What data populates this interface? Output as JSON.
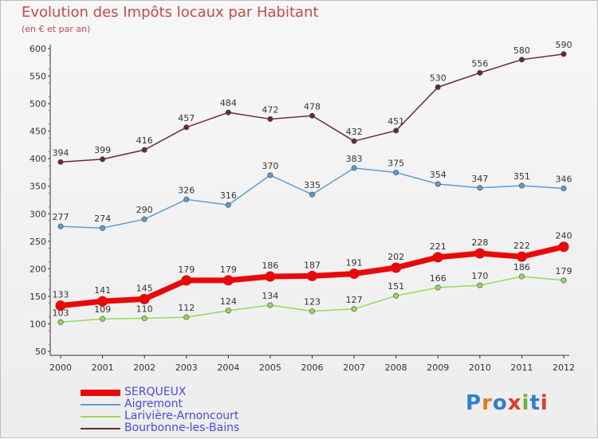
{
  "title": "Evolution des Impôts locaux par Habitant",
  "subtitle": "(en € et par an)",
  "logo": {
    "text": "Proxiti",
    "colors": [
      "#2f7fd0",
      "#e87818",
      "#2f7fd0",
      "#e03a2a",
      "#6cb33a",
      "#2f7fd0",
      "#e03a2a"
    ]
  },
  "chart_data": {
    "type": "line",
    "title": "Evolution des Impôts locaux par Habitant",
    "ylabel": "",
    "xlabel": "",
    "ylim": [
      50,
      600
    ],
    "yticks": [
      50,
      100,
      150,
      200,
      250,
      300,
      350,
      400,
      450,
      500,
      550,
      600
    ],
    "x": [
      "2000",
      "2001",
      "2002",
      "2003",
      "2004",
      "2005",
      "2006",
      "2007",
      "2008",
      "2009",
      "2010",
      "2011",
      "2012"
    ],
    "grid": false,
    "legend_position": "bottom-left",
    "series": [
      {
        "name": "SERQUEUX",
        "color": "#e8080a",
        "values": [
          133,
          141,
          145,
          179,
          179,
          186,
          187,
          191,
          202,
          221,
          228,
          222,
          240
        ]
      },
      {
        "name": "Aigremont",
        "color": "#5e9cd0",
        "values": [
          277,
          274,
          290,
          326,
          316,
          370,
          335,
          383,
          375,
          354,
          347,
          351,
          346
        ]
      },
      {
        "name": "Larivière-Arnoncourt",
        "color": "#9ad85a",
        "values": [
          103,
          109,
          110,
          112,
          124,
          134,
          123,
          127,
          151,
          166,
          170,
          186,
          179
        ]
      },
      {
        "name": "Bourbonne-les-Bains",
        "color": "#6b2a2a",
        "values": [
          394,
          399,
          416,
          457,
          484,
          472,
          478,
          432,
          451,
          530,
          556,
          580,
          590
        ]
      }
    ]
  }
}
